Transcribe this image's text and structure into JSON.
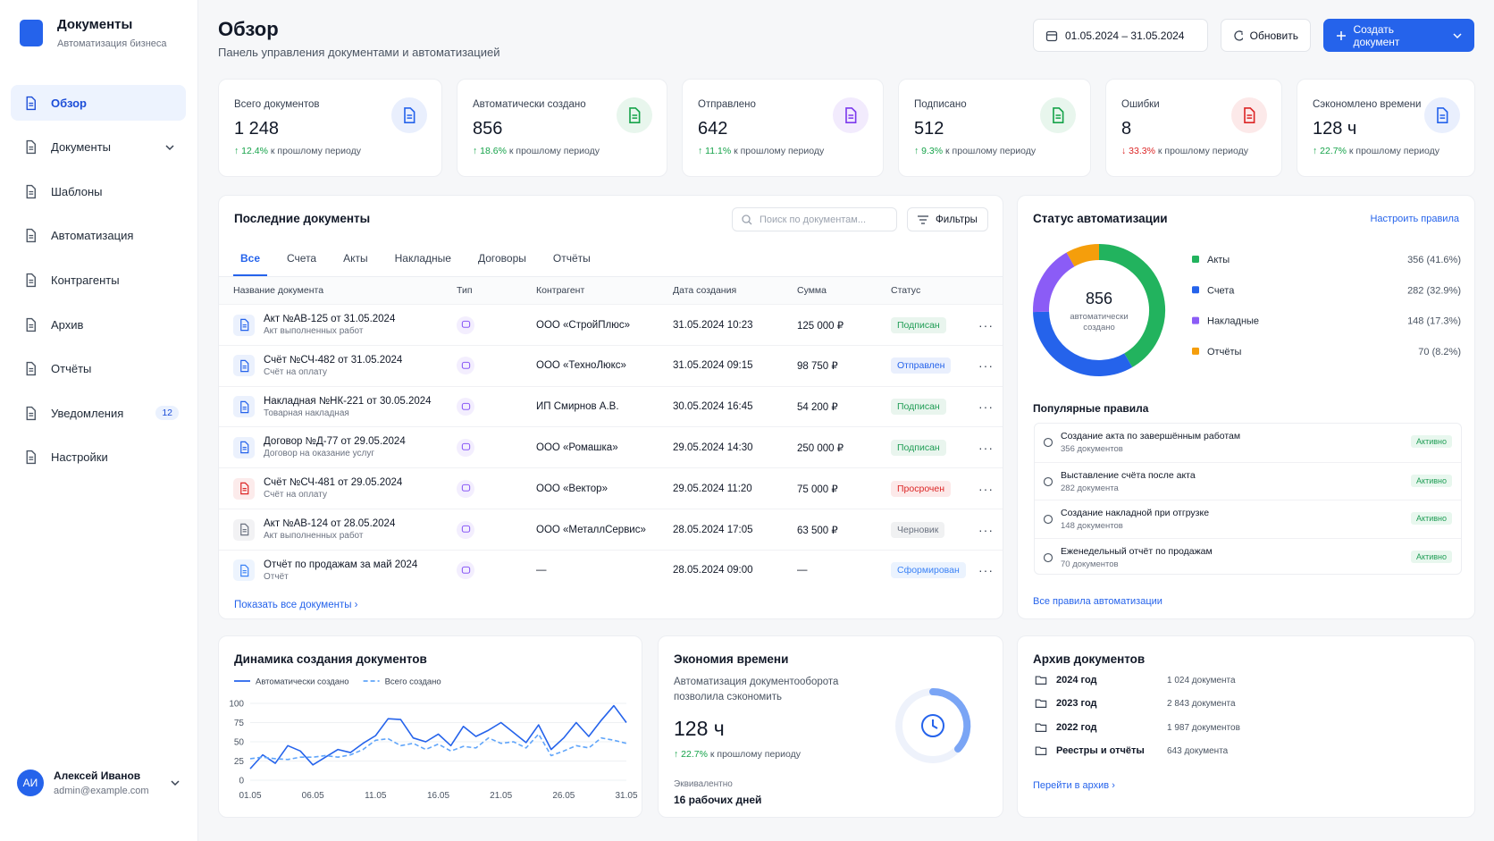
{
  "sidebar": {
    "app_title": "Документы",
    "app_subtitle": "Автоматизация бизнеса",
    "nav": [
      {
        "label": "Обзор",
        "active": true
      },
      {
        "label": "Документы",
        "submenu": true
      },
      {
        "label": "Шаблоны"
      },
      {
        "label": "Автоматизация"
      },
      {
        "label": "Контрагенты"
      },
      {
        "label": "Архив"
      },
      {
        "label": "Отчёты"
      },
      {
        "label": "Уведомления",
        "badge": 12
      },
      {
        "label": "Настройки"
      }
    ],
    "user": {
      "initials": "АИ",
      "name": "Алексей Иванов",
      "email": "admin@example.com"
    }
  },
  "header": {
    "title": "Обзор",
    "subtitle": "Панель управления документами и автоматизацией",
    "date_range": "01.05.2024 – 31.05.2024",
    "refresh": "Обновить",
    "create": "Создать документ"
  },
  "kpis": [
    {
      "label": "Всего документов",
      "value": "1 248",
      "change": "12.4%",
      "change_text": "к прошлому периоду",
      "change_color": "#16a34a",
      "color": "#2563eb"
    },
    {
      "label": "Автоматически создано",
      "value": "856",
      "change": "18.6%",
      "change_text": "к прошлому периоду",
      "change_color": "#16a34a",
      "color": "#16a34a"
    },
    {
      "label": "Отправлено",
      "value": "642",
      "change": "11.1%",
      "change_text": "к прошлому периоду",
      "change_color": "#16a34a",
      "color": "#7c3aed"
    },
    {
      "label": "Подписано",
      "value": "512",
      "change": "9.3%",
      "change_text": "к прошлому периоду",
      "change_color": "#16a34a",
      "color": "#16a34a"
    },
    {
      "label": "Ошибки",
      "value": "8",
      "change": "33.3%",
      "change_text": "к прошлому периоду",
      "change_color": "#dc2626",
      "color": "#dc2626"
    },
    {
      "label": "Сэкономлено времени",
      "value": "128 ч",
      "change": "22.7%",
      "change_text": "к прошлому периоду",
      "change_color": "#16a34a",
      "color": "#2563eb"
    }
  ],
  "recent_documents": {
    "title": "Последние документы",
    "search_placeholder": "Поиск по документам...",
    "filters": "Фильтры",
    "tabs": [
      "Все",
      "Счета",
      "Акты",
      "Накладные",
      "Договоры",
      "Отчёты"
    ],
    "active_tab": 0,
    "columns": [
      "Название документа",
      "Тип",
      "Контрагент",
      "Дата создания",
      "Сумма",
      "Статус"
    ],
    "rows": [
      {
        "name": "Акт №АВ-125 от 31.05.2024",
        "desc": "Акт выполненных работ",
        "counterparty": "ООО «СтройПлюс»",
        "date": "31.05.2024 10:23",
        "amount": "125 000 ₽",
        "status": "Подписан",
        "status_color": "#1f9d55",
        "icon_color": "#2563eb"
      },
      {
        "name": "Счёт №СЧ-482 от 31.05.2024",
        "desc": "Счёт на оплату",
        "counterparty": "ООО «ТехноЛюкс»",
        "date": "31.05.2024 09:15",
        "amount": "98 750 ₽",
        "status": "Отправлен",
        "status_color": "#2563eb",
        "icon_color": "#2563eb"
      },
      {
        "name": "Накладная №НК-221 от 30.05.2024",
        "desc": "Товарная накладная",
        "counterparty": "ИП Смирнов А.В.",
        "date": "30.05.2024 16:45",
        "amount": "54 200 ₽",
        "status": "Подписан",
        "status_color": "#1f9d55",
        "icon_color": "#2563eb"
      },
      {
        "name": "Договор №Д-77 от 29.05.2024",
        "desc": "Договор на оказание услуг",
        "counterparty": "ООО «Ромашка»",
        "date": "29.05.2024 14:30",
        "amount": "250 000 ₽",
        "status": "Подписан",
        "status_color": "#1f9d55",
        "icon_color": "#2563eb"
      },
      {
        "name": "Счёт №СЧ-481 от 29.05.2024",
        "desc": "Счёт на оплату",
        "counterparty": "ООО «Вектор»",
        "date": "29.05.2024 11:20",
        "amount": "75 000 ₽",
        "status": "Просрочен",
        "status_color": "#dc2626",
        "icon_color": "#dc2626"
      },
      {
        "name": "Акт №АВ-124 от 28.05.2024",
        "desc": "Акт выполненных работ",
        "counterparty": "ООО «МеталлСервис»",
        "date": "28.05.2024 17:05",
        "amount": "63 500 ₽",
        "status": "Черновик",
        "status_color": "#6b7280",
        "icon_color": "#6b7280"
      },
      {
        "name": "Отчёт по продажам за май 2024",
        "desc": "Отчёт",
        "counterparty": "—",
        "date": "28.05.2024 09:00",
        "amount": "—",
        "status": "Сформирован",
        "status_color": "#3b82f6",
        "icon_color": "#3b82f6"
      }
    ],
    "show_all": "Показать все документы"
  },
  "automation": {
    "configure": "Настроить правила",
    "rules_title": "Популярные правила",
    "rules": [
      {
        "name": "Создание акта по завершённым работам",
        "count": "356 документов",
        "status": "Активно"
      },
      {
        "name": "Выставление счёта после акта",
        "count": "282 документа",
        "status": "Активно"
      },
      {
        "name": "Создание накладной при отгрузке",
        "count": "148 документов",
        "status": "Активно"
      },
      {
        "name": "Еженедельный отчёт по продажам",
        "count": "70 документов",
        "status": "Активно"
      }
    ],
    "all_rules": "Все правила автоматизации"
  },
  "time_savings": {
    "title": "Экономия времени",
    "text": "Автоматизация документооборота позволила сэкономить",
    "value": "128 ч",
    "change": "22.7%",
    "change_text": "к прошлому периоду",
    "equivalent_label": "Эквивалентно",
    "equivalent": "16 рабочих дней"
  },
  "archive": {
    "title": "Архив документов",
    "rows": [
      {
        "name": "2024 год",
        "count": "1 024 документа"
      },
      {
        "name": "2023 год",
        "count": "2 843 документа"
      },
      {
        "name": "2022 год",
        "count": "1 987 документов"
      },
      {
        "name": "Реестры и отчёты",
        "count": "643 документа"
      }
    ],
    "link": "Перейти в архив"
  },
  "chart_data": [
    {
      "type": "pie",
      "title": "Статус автоматизации",
      "total": 856,
      "center_label": "автоматически создано",
      "categories": [
        "Акты",
        "Счета",
        "Накладные",
        "Отчёты"
      ],
      "values": [
        356,
        282,
        148,
        70
      ],
      "value_labels": [
        "356 (41.6%)",
        "282 (32.9%)",
        "148 (17.3%)",
        "70 (8.2%)"
      ],
      "colors": [
        "#22b35e",
        "#2563eb",
        "#8b5cf6",
        "#f59e0b"
      ]
    },
    {
      "type": "line",
      "title": "Динамика создания документов",
      "categories": [
        "01.05",
        null,
        null,
        null,
        null,
        "06.05",
        null,
        null,
        null,
        null,
        "11.05",
        null,
        null,
        null,
        null,
        "16.05",
        null,
        null,
        null,
        null,
        "21.05",
        null,
        null,
        null,
        null,
        "26.05",
        null,
        null,
        null,
        null,
        "31.05"
      ],
      "ylim": [
        0,
        100
      ],
      "yticks": [
        0,
        25,
        50,
        75,
        100
      ],
      "series": [
        {
          "name": "Автоматически создано",
          "color": "#2563eb",
          "dashed": false,
          "values": [
            15,
            33,
            22,
            45,
            38,
            20,
            30,
            40,
            36,
            48,
            58,
            80,
            79,
            55,
            50,
            60,
            45,
            70,
            57,
            65,
            75,
            62,
            49,
            72,
            40,
            55,
            75,
            57,
            78,
            97,
            75
          ]
        },
        {
          "name": "Всего создано",
          "color": "#60a5fa",
          "dashed": true,
          "values": [
            28,
            30,
            28,
            27,
            30,
            30,
            32,
            30,
            33,
            40,
            52,
            54,
            45,
            48,
            40,
            47,
            38,
            44,
            42,
            55,
            48,
            50,
            42,
            60,
            32,
            38,
            45,
            42,
            55,
            52,
            48
          ]
        }
      ]
    }
  ]
}
